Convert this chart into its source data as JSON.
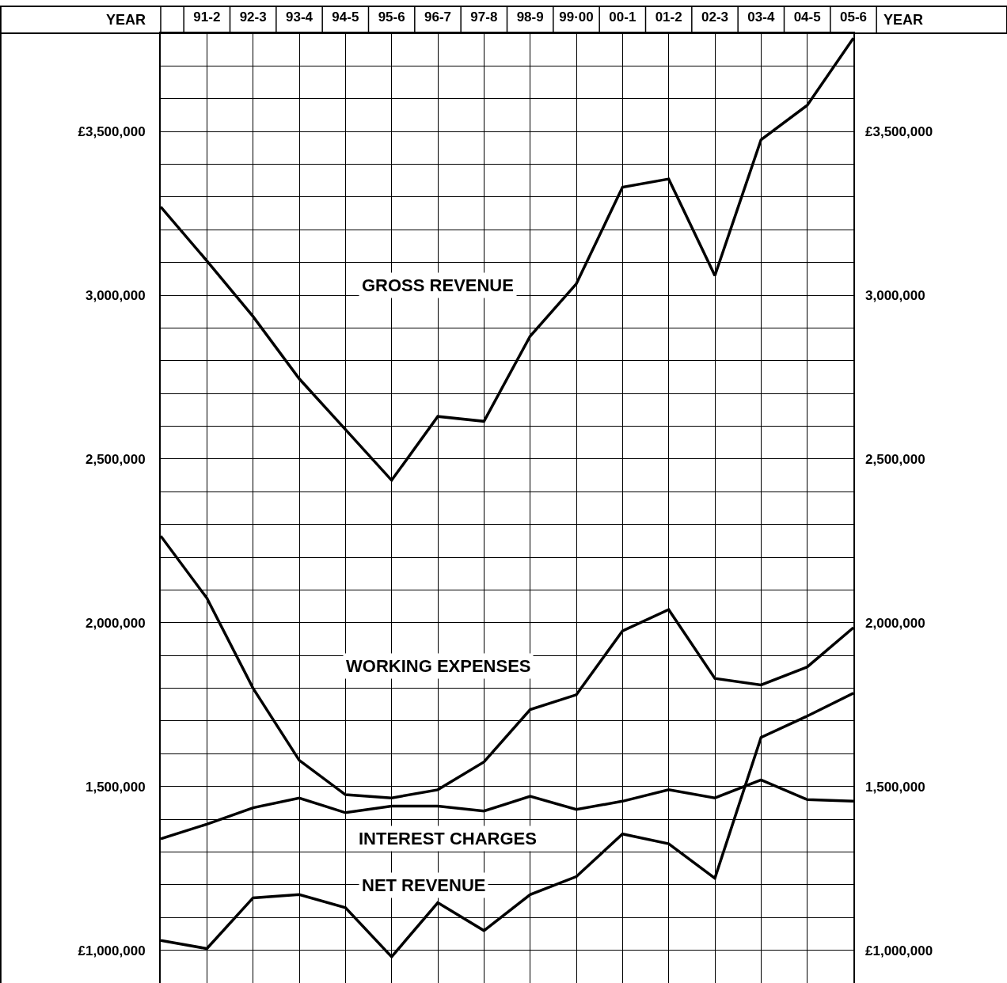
{
  "chart_data": {
    "type": "line",
    "xlabel": "YEAR",
    "categories": [
      null,
      "91-2",
      "92-3",
      "93-4",
      "94-5",
      "95-6",
      "96-7",
      "97-8",
      "98-9",
      "99·00",
      "00-1",
      "01-2",
      "02-3",
      "03-4",
      "04-5",
      "05-6"
    ],
    "ylim": [
      900000,
      3800000
    ],
    "yticks": [
      {
        "value": 1000000,
        "label": "£1,000,000"
      },
      {
        "value": 1500000,
        "label": "1,500,000"
      },
      {
        "value": 2000000,
        "label": "2,000,000"
      },
      {
        "value": 2500000,
        "label": "2,500,000"
      },
      {
        "value": 3000000,
        "label": "3,000,000"
      },
      {
        "value": 3500000,
        "label": "£3,500,000"
      }
    ],
    "y2lim": [
      900000,
      3800000
    ],
    "y2ticks": [
      {
        "value": 1000000,
        "label": "£1,000,000"
      },
      {
        "value": 1500000,
        "label": "1,500,000"
      },
      {
        "value": 2000000,
        "label": "2,000,000"
      },
      {
        "value": 2500000,
        "label": "2,500,000"
      },
      {
        "value": 3000000,
        "label": "3,000,000"
      },
      {
        "value": 3500000,
        "label": "£3,500,000"
      }
    ],
    "grid": true,
    "legend": false,
    "line_style": "solid",
    "series": [
      {
        "name": "GROSS REVENUE",
        "color": "#000000",
        "values": [
          3270000,
          3105000,
          2935000,
          2745000,
          2590000,
          2435000,
          2630000,
          2615000,
          2875000,
          3035000,
          3330000,
          3355000,
          3060000,
          3475000,
          3580000,
          3785000
        ]
      },
      {
        "name": "WORKING EXPENSES",
        "color": "#000000",
        "values": [
          2265000,
          2075000,
          1800000,
          1580000,
          1475000,
          1465000,
          1490000,
          1575000,
          1735000,
          1780000,
          1975000,
          2040000,
          1830000,
          1810000,
          1865000,
          1985000
        ]
      },
      {
        "name": "INTEREST CHARGES",
        "color": "#000000",
        "values": [
          1340000,
          1385000,
          1435000,
          1465000,
          1420000,
          1440000,
          1440000,
          1425000,
          1470000,
          1430000,
          1455000,
          1490000,
          1465000,
          1520000,
          1460000,
          1455000
        ]
      },
      {
        "name": "NET REVENUE",
        "color": "#000000",
        "values": [
          1030000,
          1005000,
          1160000,
          1170000,
          1130000,
          980000,
          1145000,
          1060000,
          1170000,
          1225000,
          1355000,
          1325000,
          1220000,
          1650000,
          1715000,
          1785000
        ]
      }
    ]
  }
}
